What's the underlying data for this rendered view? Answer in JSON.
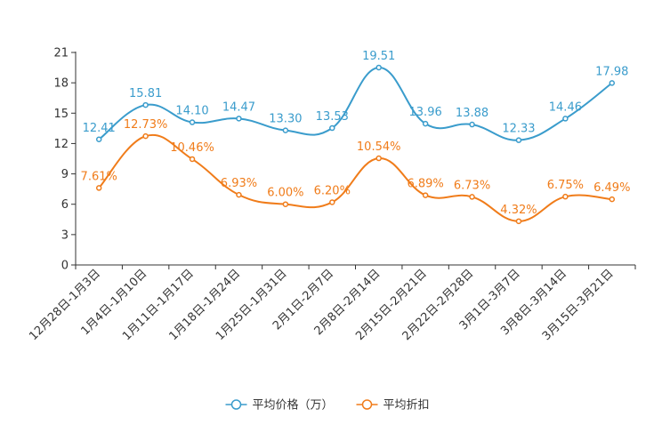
{
  "chart_data": {
    "type": "line",
    "title": "",
    "xlabel": "",
    "ylabel": "",
    "ylim": [
      0,
      21
    ],
    "yticks": [
      0,
      3,
      6,
      9,
      12,
      15,
      18,
      21
    ],
    "categories": [
      "12月28日-1月3日",
      "1月4日-1月10日",
      "1月11日-1月17日",
      "1月18日-1月24日",
      "1月25日-1月31日",
      "2月1日-2月7日",
      "2月8日-2月14日",
      "2月15日-2月21日",
      "2月22日-2月28日",
      "3月1日-3月7日",
      "3月8日-3月14日",
      "3月15日-3月21日"
    ],
    "series": [
      {
        "name": "平均价格（万）",
        "color": "#3a9ccc",
        "values": [
          12.41,
          15.81,
          14.1,
          14.47,
          13.3,
          13.53,
          19.51,
          13.96,
          13.88,
          12.33,
          14.46,
          17.98
        ],
        "labels": [
          "12.41",
          "15.81",
          "14.10",
          "14.47",
          "13.30",
          "13.53",
          "19.51",
          "13.96",
          "13.88",
          "12.33",
          "14.46",
          "17.98"
        ]
      },
      {
        "name": "平均折扣",
        "color": "#f07c1a",
        "values": [
          7.61,
          12.73,
          10.46,
          6.93,
          6.0,
          6.2,
          10.54,
          6.89,
          6.73,
          4.32,
          6.75,
          6.49
        ],
        "labels": [
          "7.61%",
          "12.73%",
          "10.46%",
          "6.93%",
          "6.00%",
          "6.20%",
          "10.54%",
          "6.89%",
          "6.73%",
          "4.32%",
          "6.75%",
          "6.49%"
        ]
      }
    ],
    "legend": "bottom-center",
    "grid": false
  }
}
